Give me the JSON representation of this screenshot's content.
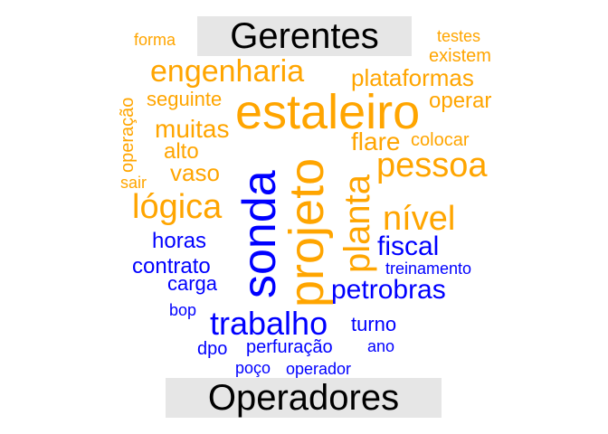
{
  "groups": {
    "top": "Gerentes",
    "bottom": "Operadores"
  },
  "colors": {
    "gerentes": "#FFA500",
    "operadores": "#0000FF",
    "title_background": "#E6E6E6"
  },
  "words": {
    "forma": "forma",
    "testes": "testes",
    "existem": "existem",
    "engenharia": "engenharia",
    "plataformas": "plataformas",
    "operacao": "operação",
    "seguinte": "seguinte",
    "operar": "operar",
    "estaleiro": "estaleiro",
    "muitas": "muitas",
    "flare": "flare",
    "colocar": "colocar",
    "alto": "alto",
    "sonda": "sonda",
    "projeto": "projeto",
    "vaso": "vaso",
    "pessoa": "pessoa",
    "sair": "sair",
    "planta": "planta",
    "logica": "lógica",
    "nivel": "nível",
    "horas": "horas",
    "fiscal": "fiscal",
    "contrato": "contrato",
    "treinamento": "treinamento",
    "carga": "carga",
    "petrobras": "petrobras",
    "bop": "bop",
    "trabalho": "trabalho",
    "turno": "turno",
    "dpo": "dpo",
    "perfuracao": "perfuração",
    "ano": "ano",
    "poco": "poço",
    "operador": "operador"
  }
}
